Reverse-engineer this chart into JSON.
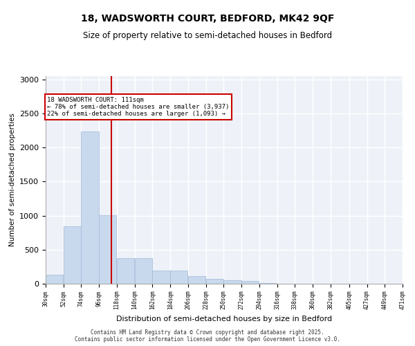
{
  "title_line1": "18, WADSWORTH COURT, BEDFORD, MK42 9QF",
  "title_line2": "Size of property relative to semi-detached houses in Bedford",
  "xlabel": "Distribution of semi-detached houses by size in Bedford",
  "ylabel": "Number of semi-detached properties",
  "bar_color": "#c8d9ed",
  "bar_edge_color": "#a0b8d8",
  "background_color": "#eef2f8",
  "grid_color": "#ffffff",
  "vline_x": 111,
  "vline_color": "#cc0000",
  "annotation_title": "18 WADSWORTH COURT: 111sqm",
  "annotation_line2": "← 78% of semi-detached houses are smaller (3,937)",
  "annotation_line3": "22% of semi-detached houses are larger (1,093) →",
  "annotation_box_color": "#ffffff",
  "annotation_box_edge": "#cc0000",
  "bin_edges": [
    30,
    52,
    74,
    96,
    118,
    140,
    162,
    184,
    206,
    228,
    250,
    272,
    294,
    316,
    338,
    360,
    382,
    405,
    427,
    449,
    471
  ],
  "bin_labels": [
    "30sqm",
    "52sqm",
    "74sqm",
    "96sqm",
    "118sqm",
    "140sqm",
    "162sqm",
    "184sqm",
    "206sqm",
    "228sqm",
    "250sqm",
    "272sqm",
    "294sqm",
    "316sqm",
    "338sqm",
    "360sqm",
    "382sqm",
    "405sqm",
    "427sqm",
    "449sqm",
    "471sqm"
  ],
  "counts": [
    130,
    840,
    2240,
    1010,
    380,
    375,
    195,
    195,
    115,
    75,
    55,
    40,
    15,
    5,
    3,
    2,
    1,
    1,
    1,
    0
  ],
  "ylim": [
    0,
    3050
  ],
  "yticks": [
    0,
    500,
    1000,
    1500,
    2000,
    2500,
    3000
  ],
  "footer_line1": "Contains HM Land Registry data © Crown copyright and database right 2025.",
  "footer_line2": "Contains public sector information licensed under the Open Government Licence v3.0."
}
